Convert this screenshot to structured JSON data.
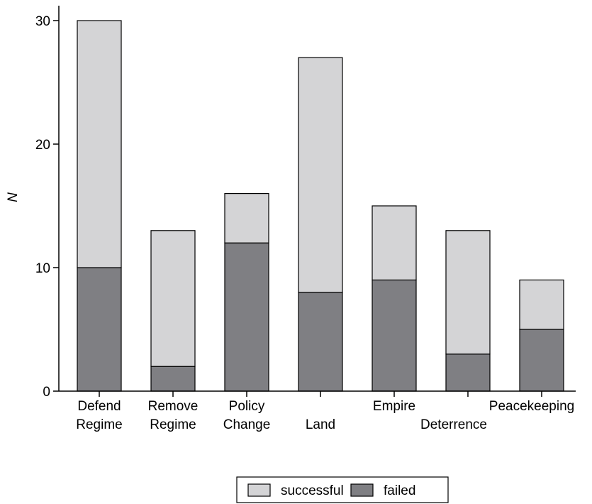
{
  "chart_data": {
    "type": "bar",
    "stacked": true,
    "categories": [
      "Defend Regime",
      "Remove Regime",
      "Policy Change",
      "Land",
      "Empire",
      "Deterrence",
      "Peacekeeping"
    ],
    "category_lines": [
      [
        "Defend",
        "Regime"
      ],
      [
        "Remove",
        "Regime"
      ],
      [
        "Policy",
        "Change"
      ],
      [
        "Land"
      ],
      [
        "Empire"
      ],
      [
        "Deterrence"
      ],
      [
        "Peacekeeping"
      ]
    ],
    "series": [
      {
        "name": "failed",
        "values": [
          10,
          2,
          12,
          8,
          9,
          3,
          5
        ],
        "color": "#7f7f83"
      },
      {
        "name": "successful",
        "values": [
          20,
          11,
          4,
          19,
          6,
          10,
          4
        ],
        "color": "#d4d4d6"
      }
    ],
    "totals": [
      30,
      13,
      16,
      27,
      15,
      13,
      9
    ],
    "ylabel": "N",
    "ylim": [
      0,
      30
    ],
    "yticks": [
      0,
      10,
      20,
      30
    ],
    "grid": false,
    "legend": {
      "placement": "bottom-center",
      "items": [
        {
          "label": "successful",
          "color": "#d4d4d6"
        },
        {
          "label": "failed",
          "color": "#7f7f83"
        }
      ]
    }
  }
}
